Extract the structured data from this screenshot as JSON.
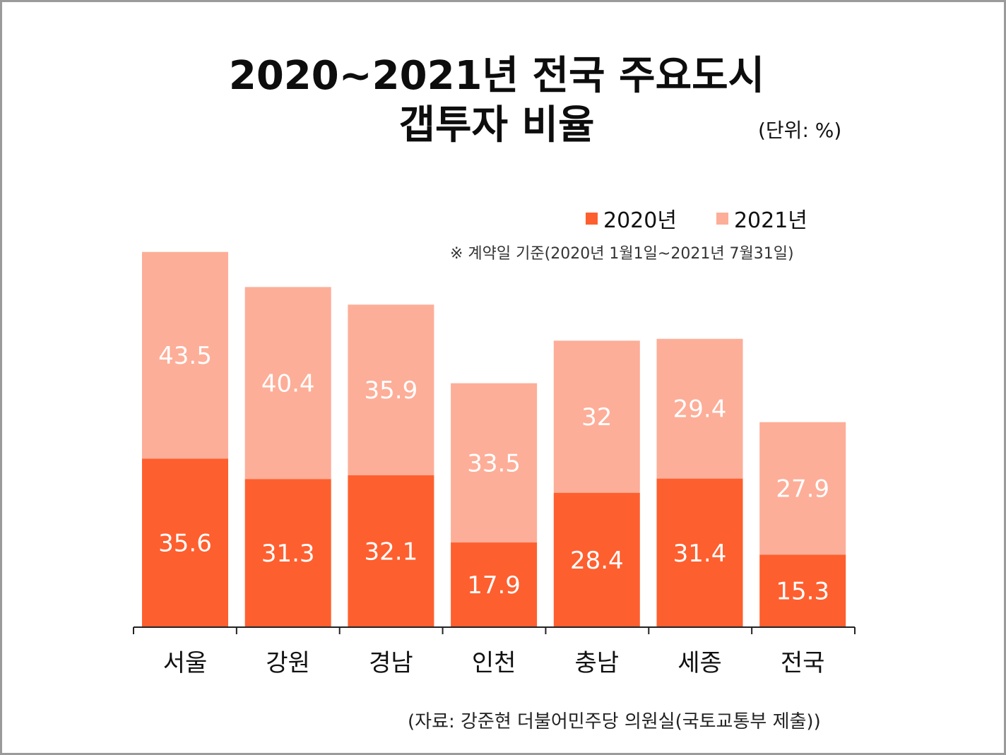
{
  "title_line1": "2020~2021년 전국 주요도시",
  "title_line2": "갭투자 비율",
  "unit": "(단위: %)",
  "note": "※ 계약일 기준(2020년 1월1일~2021년 7월31일)",
  "source": "(자료: 강준현 더불어민주당 의원실(국토교통부 제출))",
  "colors": {
    "2020": "#fe5f2f",
    "2021": "#fdae98",
    "axis": "#222222",
    "bar_label": "#ffffff"
  },
  "chart_data": {
    "type": "bar",
    "categories": [
      "서울",
      "강원",
      "경남",
      "인천",
      "충남",
      "세종",
      "전국"
    ],
    "series": [
      {
        "name": "2020년",
        "values": [
          35.6,
          31.3,
          32.1,
          17.9,
          28.4,
          31.4,
          15.3
        ]
      },
      {
        "name": "2021년",
        "values": [
          43.5,
          40.4,
          35.9,
          33.5,
          32,
          29.4,
          27.9
        ]
      }
    ],
    "label_strings": [
      [
        "35.6",
        "31.3",
        "32.1",
        "17.9",
        "28.4",
        "31.4",
        "15.3"
      ],
      [
        "43.5",
        "40.4",
        "35.9",
        "33.5",
        "32",
        "29.4",
        "27.9"
      ]
    ],
    "legend_position": "top-right",
    "grid": false
  }
}
